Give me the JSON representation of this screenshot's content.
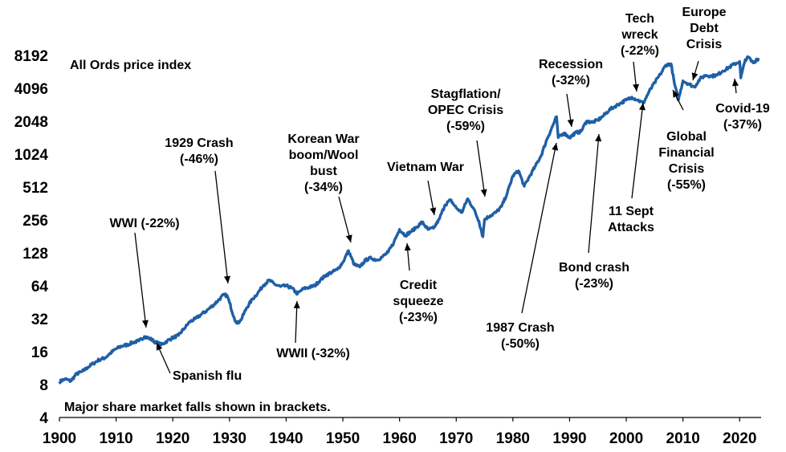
{
  "chart_data": {
    "type": "line",
    "title": "All Ords price index",
    "note": "Major share market falls shown in brackets.",
    "y_scale": "log2",
    "ylim": [
      4,
      12000
    ],
    "xlim": [
      1900,
      2023.5
    ],
    "x_ticks": [
      1900,
      1910,
      1920,
      1930,
      1940,
      1950,
      1960,
      1970,
      1980,
      1990,
      2000,
      2010,
      2020
    ],
    "y_ticks": [
      4,
      8,
      16,
      32,
      64,
      128,
      256,
      512,
      1024,
      2048,
      4096,
      8192
    ],
    "grid": false,
    "series": [
      {
        "name": "All Ords price index",
        "color": "#1f5fa6",
        "points": [
          [
            1900,
            8.5
          ],
          [
            1901,
            9
          ],
          [
            1902,
            8.6
          ],
          [
            1903,
            10
          ],
          [
            1904,
            10.5
          ],
          [
            1905,
            11.5
          ],
          [
            1906,
            12.5
          ],
          [
            1907,
            13.5
          ],
          [
            1908,
            14
          ],
          [
            1909,
            15.5
          ],
          [
            1910,
            17
          ],
          [
            1911,
            18
          ],
          [
            1912,
            18.5
          ],
          [
            1913,
            19.5
          ],
          [
            1914,
            20
          ],
          [
            1915,
            22
          ],
          [
            1916,
            21
          ],
          [
            1917,
            19.5
          ],
          [
            1918,
            18.5
          ],
          [
            1919,
            20
          ],
          [
            1920,
            21.5
          ],
          [
            1921,
            22.5
          ],
          [
            1922,
            26
          ],
          [
            1923,
            30
          ],
          [
            1924,
            32
          ],
          [
            1925,
            35
          ],
          [
            1926,
            38
          ],
          [
            1927,
            42
          ],
          [
            1928,
            47
          ],
          [
            1929,
            53
          ],
          [
            1929.6,
            52
          ],
          [
            1930,
            45
          ],
          [
            1930.8,
            33
          ],
          [
            1931.3,
            29
          ],
          [
            1932,
            31
          ],
          [
            1933,
            40
          ],
          [
            1934,
            48
          ],
          [
            1935,
            55
          ],
          [
            1936,
            65
          ],
          [
            1937,
            72
          ],
          [
            1938,
            66
          ],
          [
            1939,
            63
          ],
          [
            1940,
            64
          ],
          [
            1941,
            61
          ],
          [
            1942,
            54
          ],
          [
            1943,
            60
          ],
          [
            1944,
            62
          ],
          [
            1945,
            64
          ],
          [
            1946,
            72
          ],
          [
            1947,
            80
          ],
          [
            1948,
            85
          ],
          [
            1949,
            90
          ],
          [
            1950,
            105
          ],
          [
            1951,
            134
          ],
          [
            1952,
            100
          ],
          [
            1953,
            95
          ],
          [
            1954,
            110
          ],
          [
            1955,
            115
          ],
          [
            1956,
            110
          ],
          [
            1957,
            118
          ],
          [
            1958,
            130
          ],
          [
            1959,
            160
          ],
          [
            1960,
            210
          ],
          [
            1961,
            185
          ],
          [
            1962,
            200
          ],
          [
            1963,
            220
          ],
          [
            1964,
            245
          ],
          [
            1965,
            210
          ],
          [
            1966,
            215
          ],
          [
            1967,
            260
          ],
          [
            1968,
            350
          ],
          [
            1969,
            390
          ],
          [
            1970,
            330
          ],
          [
            1971,
            300
          ],
          [
            1972,
            400
          ],
          [
            1973,
            330
          ],
          [
            1974,
            250
          ],
          [
            1974.7,
            180
          ],
          [
            1975,
            260
          ],
          [
            1976,
            280
          ],
          [
            1977,
            300
          ],
          [
            1978,
            340
          ],
          [
            1979,
            450
          ],
          [
            1980,
            650
          ],
          [
            1981,
            720
          ],
          [
            1982,
            520
          ],
          [
            1983,
            650
          ],
          [
            1984,
            800
          ],
          [
            1985,
            1000
          ],
          [
            1986,
            1400
          ],
          [
            1987.7,
            2250
          ],
          [
            1988,
            1450
          ],
          [
            1989,
            1600
          ],
          [
            1990,
            1450
          ],
          [
            1991,
            1600
          ],
          [
            1992,
            1650
          ],
          [
            1993,
            2050
          ],
          [
            1994,
            2000
          ],
          [
            1995,
            2100
          ],
          [
            1996,
            2300
          ],
          [
            1997,
            2600
          ],
          [
            1998,
            2800
          ],
          [
            1999,
            3000
          ],
          [
            2000,
            3200
          ],
          [
            2001,
            3400
          ],
          [
            2002,
            3200
          ],
          [
            2003,
            3000
          ],
          [
            2004,
            3800
          ],
          [
            2005,
            4600
          ],
          [
            2006,
            5500
          ],
          [
            2007,
            6700
          ],
          [
            2007.9,
            6850
          ],
          [
            2008.5,
            4500
          ],
          [
            2009.2,
            3200
          ],
          [
            2010,
            4800
          ],
          [
            2011,
            4500
          ],
          [
            2012,
            4200
          ],
          [
            2013,
            5000
          ],
          [
            2014,
            5400
          ],
          [
            2015,
            5300
          ],
          [
            2016,
            5400
          ],
          [
            2017,
            5900
          ],
          [
            2018,
            6300
          ],
          [
            2019,
            6800
          ],
          [
            2020,
            7200
          ],
          [
            2020.2,
            5100
          ],
          [
            2021,
            7500
          ],
          [
            2021.6,
            7900
          ],
          [
            2022,
            7300
          ],
          [
            2022.5,
            7000
          ],
          [
            2023,
            7600
          ],
          [
            2023.5,
            7500
          ]
        ]
      }
    ],
    "annotations": [
      {
        "id": "wwi",
        "lines": [
          "WWI (-22%)"
        ],
        "x": 1915,
        "y": 22
      },
      {
        "id": "spanish-flu",
        "lines": [
          "Spanish flu"
        ],
        "x": 1918,
        "y": 18.5
      },
      {
        "id": "crash-1929",
        "lines": [
          "1929 Crash",
          "(-46%)"
        ],
        "x": 1929.5,
        "y": 53
      },
      {
        "id": "wwii",
        "lines": [
          "WWII (-32%)"
        ],
        "x": 1942,
        "y": 54
      },
      {
        "id": "korean-war",
        "lines": [
          "Korean War",
          "boom/Wool",
          "bust",
          "(-34%)"
        ],
        "x": 1951,
        "y": 134
      },
      {
        "id": "credit-squeeze",
        "lines": [
          "Credit",
          "squeeze",
          "(-23%)"
        ],
        "x": 1961,
        "y": 185
      },
      {
        "id": "vietnam-war",
        "lines": [
          "Vietnam War"
        ],
        "x": 1965.5,
        "y": 212
      },
      {
        "id": "stagflation",
        "lines": [
          "Stagflation/",
          "OPEC Crisis",
          "(-59%)"
        ],
        "x": 1974.7,
        "y": 180
      },
      {
        "id": "crash-1987",
        "lines": [
          "1987 Crash",
          "(-50%)"
        ],
        "x": 1987.8,
        "y": 1500
      },
      {
        "id": "recession",
        "lines": [
          "Recession",
          "(-32%)"
        ],
        "x": 1990,
        "y": 1450
      },
      {
        "id": "bond-crash",
        "lines": [
          "Bond crash",
          "(-23%)"
        ],
        "x": 1994,
        "y": 2000
      },
      {
        "id": "tech-wreck",
        "lines": [
          "Tech",
          "wreck",
          "(-22%)"
        ],
        "x": 2001.5,
        "y": 3300
      },
      {
        "id": "sept-11",
        "lines": [
          "11 Sept",
          "Attacks"
        ],
        "x": 2002,
        "y": 3200
      },
      {
        "id": "gfc",
        "lines": [
          "Global",
          "Financial",
          "Crisis",
          "(-55%)"
        ],
        "x": 2009.2,
        "y": 3200
      },
      {
        "id": "europe-debt",
        "lines": [
          "Europe",
          "Debt",
          "Crisis"
        ],
        "x": 2011.5,
        "y": 4300
      },
      {
        "id": "covid",
        "lines": [
          "Covid-19",
          "(-37%)"
        ],
        "x": 2020.2,
        "y": 5100
      }
    ]
  }
}
